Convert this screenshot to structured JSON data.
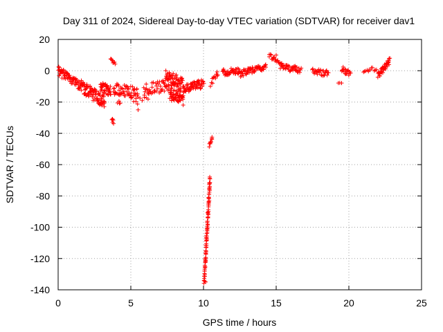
{
  "chart_data": {
    "type": "scatter",
    "title": "Day 311 of 2024, Sidereal Day-to-day VTEC variation (SDTVAR) for receiver dav1",
    "xlabel": "GPS time / hours",
    "ylabel": "SDTVAR / TECUs",
    "xlim": [
      0,
      25
    ],
    "ylim": [
      -140,
      20
    ],
    "xticks": [
      0,
      5,
      10,
      15,
      20,
      25
    ],
    "yticks": [
      20,
      0,
      -20,
      -40,
      -60,
      -80,
      -100,
      -120,
      -140
    ],
    "grid": true,
    "marker": "+",
    "color": "#ff0000",
    "series": [
      {
        "name": "dav1",
        "segments": [
          {
            "x0": 0.0,
            "x1": 1.6,
            "y0": 0,
            "y1": -10,
            "n": 70,
            "jitter": 3
          },
          {
            "x0": 1.6,
            "x1": 3.2,
            "y0": -10,
            "y1": -20,
            "n": 90,
            "jitter": 4
          },
          {
            "x0": 2.9,
            "x1": 3.6,
            "y0": -10,
            "y1": -13,
            "n": 40,
            "jitter": 3
          },
          {
            "x0": 3.6,
            "x1": 3.9,
            "y0": 8,
            "y1": 5,
            "n": 8,
            "jitter": 2
          },
          {
            "x0": 3.7,
            "x1": 3.8,
            "y0": -31,
            "y1": -33,
            "n": 5,
            "jitter": 1
          },
          {
            "x0": 3.8,
            "x1": 5.5,
            "y0": -12,
            "y1": -14,
            "n": 60,
            "jitter": 4
          },
          {
            "x0": 4.1,
            "x1": 4.3,
            "y0": -20,
            "y1": -21,
            "n": 4,
            "jitter": 1
          },
          {
            "x0": 5.2,
            "x1": 6.2,
            "y0": -20,
            "y1": -18,
            "n": 8,
            "jitter": 2
          },
          {
            "x0": 5.9,
            "x1": 7.4,
            "y0": -12,
            "y1": -10,
            "n": 40,
            "jitter": 4
          },
          {
            "x0": 7.4,
            "x1": 8.6,
            "y0": -5,
            "y1": -12,
            "n": 90,
            "jitter": 7
          },
          {
            "x0": 7.7,
            "x1": 8.6,
            "y0": -16,
            "y1": -19,
            "n": 40,
            "jitter": 3
          },
          {
            "x0": 8.6,
            "x1": 10.0,
            "y0": -12,
            "y1": -8,
            "n": 60,
            "jitter": 3
          },
          {
            "x0": 10.05,
            "x1": 10.45,
            "y0": -135,
            "y1": -68,
            "n": 90,
            "jitter": 1.5
          },
          {
            "x0": 10.4,
            "x1": 10.6,
            "y0": -48,
            "y1": -43,
            "n": 10,
            "jitter": 1
          },
          {
            "x0": 10.5,
            "x1": 11.0,
            "y0": -8,
            "y1": -2,
            "n": 12,
            "jitter": 2
          },
          {
            "x0": 11.3,
            "x1": 12.5,
            "y0": -1,
            "y1": 0,
            "n": 40,
            "jitter": 2
          },
          {
            "x0": 12.5,
            "x1": 14.3,
            "y0": -2,
            "y1": 3,
            "n": 60,
            "jitter": 2
          },
          {
            "x0": 14.5,
            "x1": 15.4,
            "y0": 10,
            "y1": 4,
            "n": 20,
            "jitter": 1.5
          },
          {
            "x0": 15.3,
            "x1": 16.7,
            "y0": 3,
            "y1": 0,
            "n": 40,
            "jitter": 2
          },
          {
            "x0": 17.5,
            "x1": 18.6,
            "y0": 0,
            "y1": -2,
            "n": 30,
            "jitter": 2
          },
          {
            "x0": 19.3,
            "x1": 19.5,
            "y0": -7,
            "y1": -7,
            "n": 3,
            "jitter": 1
          },
          {
            "x0": 19.5,
            "x1": 20.1,
            "y0": 1,
            "y1": -2,
            "n": 18,
            "jitter": 2
          },
          {
            "x0": 21.0,
            "x1": 21.9,
            "y0": -2,
            "y1": 2,
            "n": 12,
            "jitter": 1.5
          },
          {
            "x0": 22.0,
            "x1": 22.8,
            "y0": -3,
            "y1": 6,
            "n": 40,
            "jitter": 2
          }
        ],
        "points": [
          {
            "x": 5.5,
            "y": -25
          },
          {
            "x": 3.75,
            "y": -33
          },
          {
            "x": 10.15,
            "y": -135
          },
          {
            "x": 14.8,
            "y": 8
          },
          {
            "x": 15.0,
            "y": 10
          },
          {
            "x": 16.3,
            "y": 3
          }
        ]
      }
    ]
  }
}
